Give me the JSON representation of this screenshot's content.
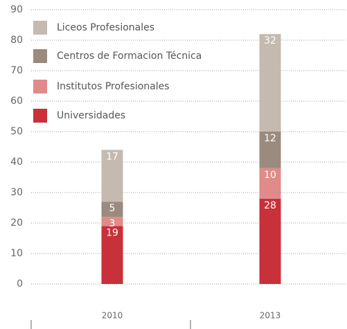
{
  "chart_data": {
    "type": "stacked_bar",
    "categories": [
      "2010",
      "2013"
    ],
    "series": [
      {
        "name": "Liceos Profesionales",
        "color": "#c4bab0",
        "values": [
          17,
          32
        ]
      },
      {
        "name": "Centros de Formacion Técnica",
        "color": "#9a8b7e",
        "values": [
          5,
          12
        ]
      },
      {
        "name": "Institutos Profesionales",
        "color": "#e08a8a",
        "values": [
          3,
          10
        ]
      },
      {
        "name": "Universidades",
        "color": "#c8313a",
        "values": [
          19,
          28
        ]
      }
    ],
    "ylim": [
      0,
      90
    ],
    "yticks": [
      0,
      10,
      20,
      30,
      40,
      50,
      60,
      70,
      80,
      90
    ],
    "grid": true,
    "legend": "top-left"
  }
}
